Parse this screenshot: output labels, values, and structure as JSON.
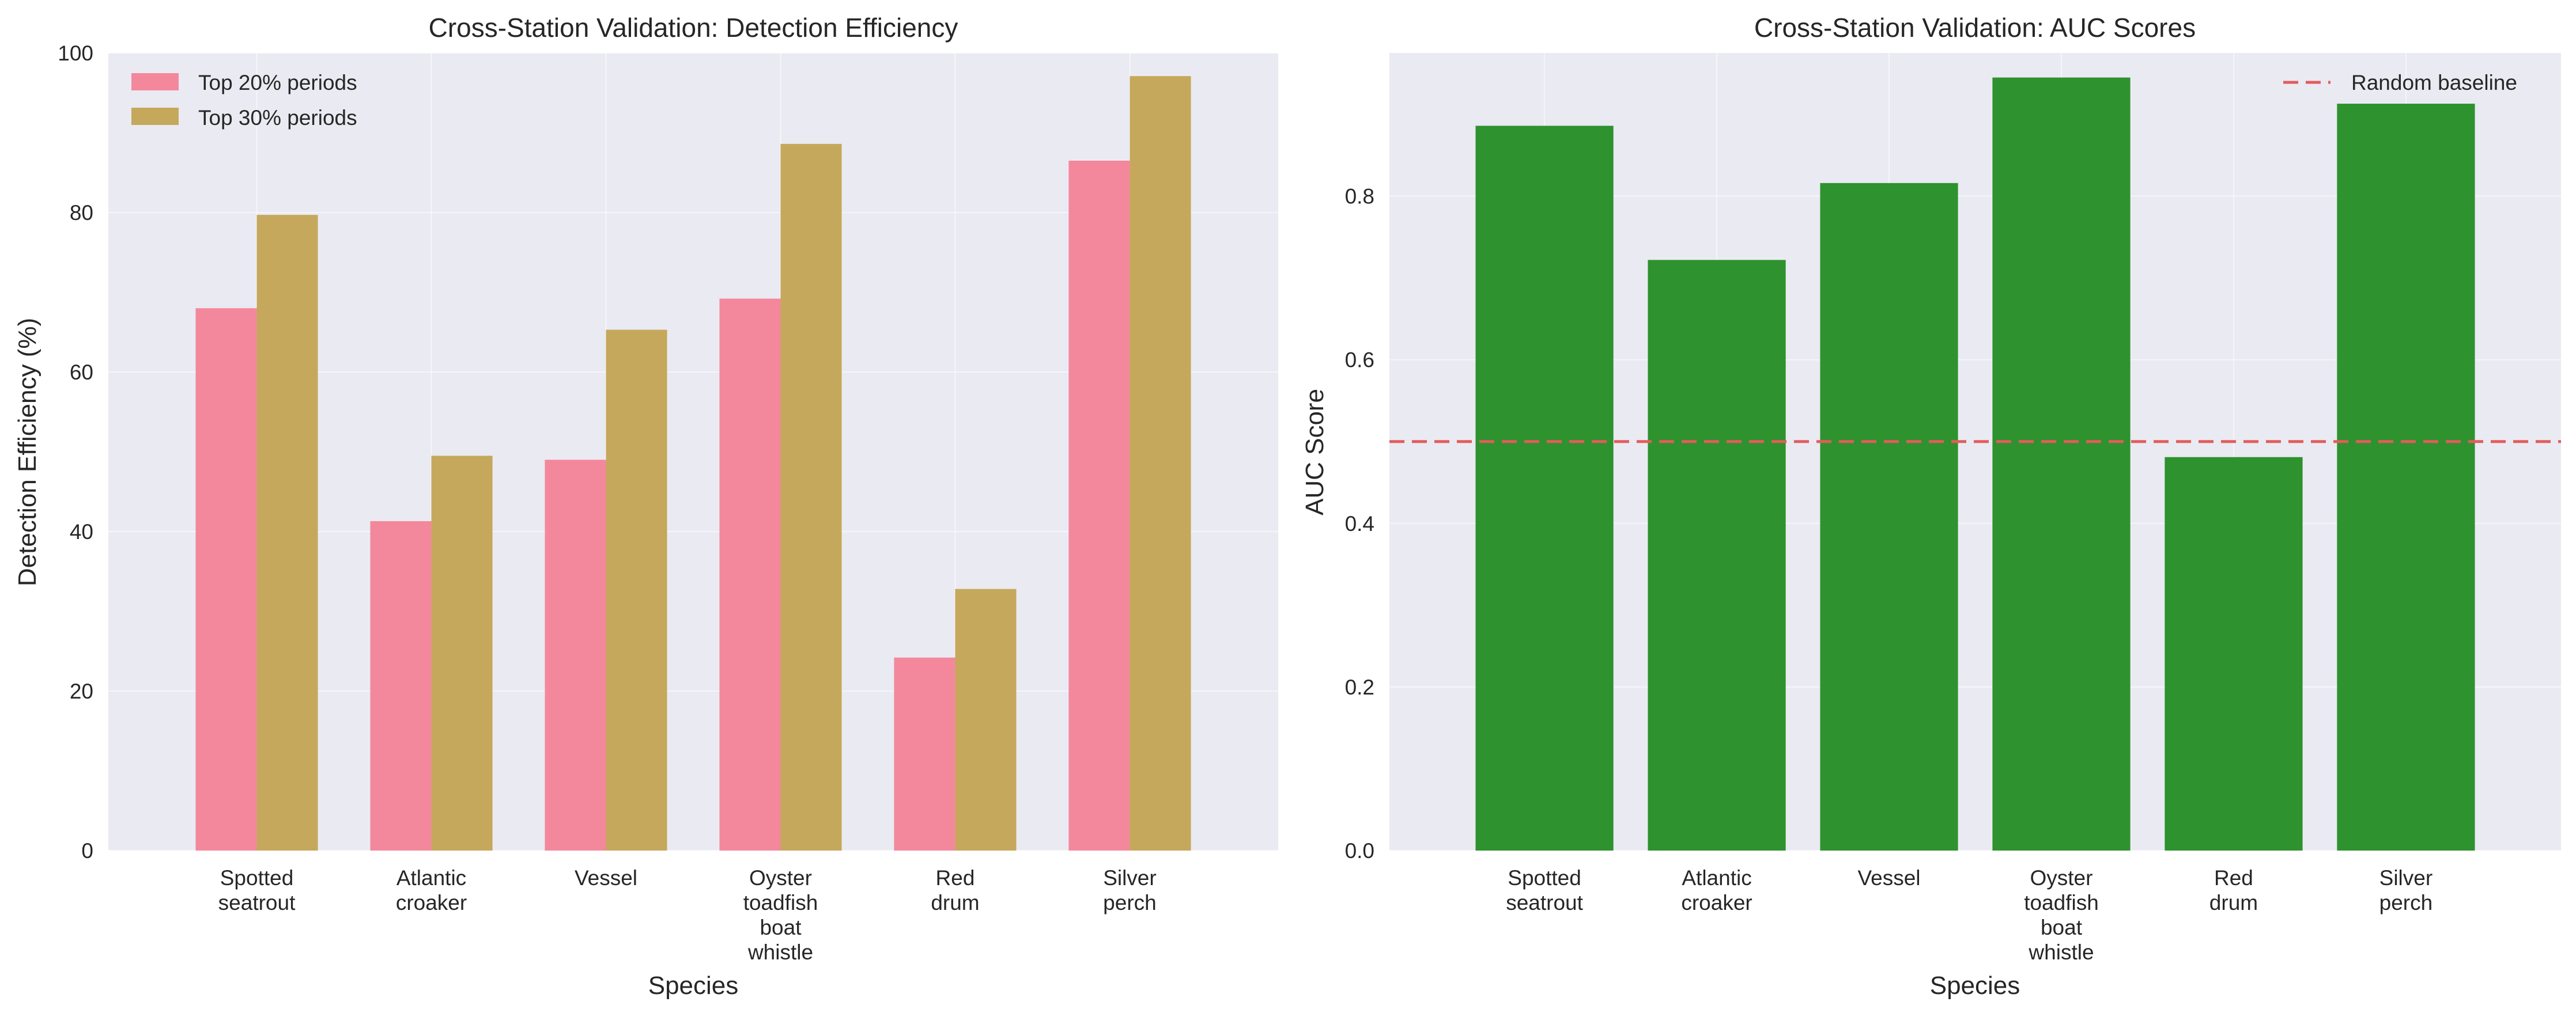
{
  "colors": {
    "figure_bg": "#ffffff",
    "axes_bg": "#eaeaf2",
    "grid": "#ffffff",
    "top20": "#f3889d",
    "top30": "#c5a85b",
    "auc_bar": "#2e922e",
    "baseline": "#e25c5c"
  },
  "chart_data": [
    {
      "type": "bar",
      "title": "Cross-Station Validation: Detection Efficiency",
      "xlabel": "Species",
      "ylabel": "Detection Efficiency (%)",
      "ylim": [
        0,
        100
      ],
      "yticks": [
        "0",
        "20",
        "40",
        "60",
        "80",
        "100"
      ],
      "ytick_values": [
        0,
        20,
        40,
        60,
        80,
        100
      ],
      "grid": true,
      "legend_position": "top-left",
      "categories": [
        [
          "Spotted",
          "seatrout"
        ],
        [
          "Atlantic",
          "croaker"
        ],
        [
          "Vessel"
        ],
        [
          "Oyster",
          "toadfish",
          "boat",
          "whistle"
        ],
        [
          "Red",
          "drum"
        ],
        [
          "Silver",
          "perch"
        ]
      ],
      "series": [
        {
          "name": "Top 20% periods",
          "color": "#f3889d",
          "values": [
            68.0,
            41.3,
            49.0,
            69.2,
            24.2,
            86.5
          ]
        },
        {
          "name": "Top 30% periods",
          "color": "#c5a85b",
          "values": [
            79.7,
            49.5,
            65.3,
            88.6,
            32.8,
            97.1
          ]
        }
      ]
    },
    {
      "type": "bar",
      "title": "Cross-Station Validation: AUC Scores",
      "xlabel": "Species",
      "ylabel": "AUC Score",
      "ylim": [
        0,
        0.975
      ],
      "yticks": [
        "0.0",
        "0.2",
        "0.4",
        "0.6",
        "0.8"
      ],
      "ytick_values": [
        0.0,
        0.2,
        0.4,
        0.6,
        0.8
      ],
      "grid": true,
      "legend_position": "top-right",
      "categories": [
        [
          "Spotted",
          "seatrout"
        ],
        [
          "Atlantic",
          "croaker"
        ],
        [
          "Vessel"
        ],
        [
          "Oyster",
          "toadfish",
          "boat",
          "whistle"
        ],
        [
          "Red",
          "drum"
        ],
        [
          "Silver",
          "perch"
        ]
      ],
      "values": [
        0.886,
        0.722,
        0.816,
        0.945,
        0.481,
        0.913
      ],
      "bar_color": "#2e922e",
      "baseline": {
        "name": "Random baseline",
        "value": 0.5,
        "color": "#e25c5c"
      }
    }
  ]
}
